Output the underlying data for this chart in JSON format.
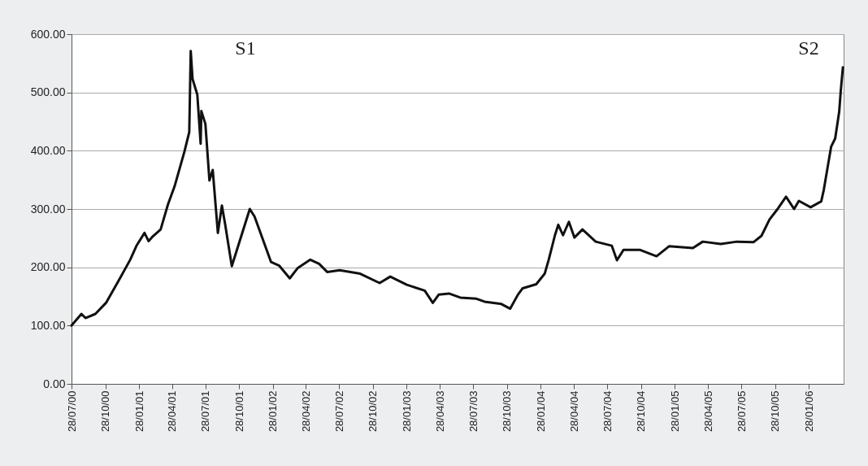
{
  "chart_data": {
    "type": "line",
    "x": [
      "2000-07-28",
      "2000-08-24",
      "2000-09-04",
      "2000-10-01",
      "2000-10-30",
      "2000-12-07",
      "2001-01-04",
      "2001-01-22",
      "2001-02-12",
      "2001-02-23",
      "2001-03-05",
      "2001-03-28",
      "2001-04-17",
      "2001-05-05",
      "2001-06-01",
      "2001-06-14",
      "2001-06-18",
      "2001-06-23",
      "2001-07-06",
      "2001-07-15",
      "2001-07-17",
      "2001-07-28",
      "2001-08-08",
      "2001-08-17",
      "2001-08-31",
      "2001-09-11",
      "2001-09-20",
      "2001-10-08",
      "2001-11-26",
      "2001-12-09",
      "2002-01-23",
      "2002-02-14",
      "2002-03-15",
      "2002-04-06",
      "2002-05-10",
      "2002-06-03",
      "2002-06-25",
      "2002-07-29",
      "2002-09-23",
      "2002-11-15",
      "2002-12-14",
      "2003-01-28",
      "2003-03-18",
      "2003-04-09",
      "2003-04-25",
      "2003-05-23",
      "2003-06-23",
      "2003-08-06",
      "2003-08-28",
      "2003-10-13",
      "2003-11-06",
      "2003-11-27",
      "2003-12-10",
      "2004-01-16",
      "2004-02-08",
      "2004-02-19",
      "2004-03-07",
      "2004-03-16",
      "2004-03-29",
      "2004-04-14",
      "2004-04-29",
      "2004-05-21",
      "2004-06-26",
      "2004-08-09",
      "2004-08-23",
      "2004-09-10",
      "2004-10-24",
      "2004-12-09",
      "2005-01-12",
      "2005-03-18",
      "2005-04-14",
      "2005-06-02",
      "2005-07-16",
      "2005-08-30",
      "2005-09-21",
      "2005-10-13",
      "2005-11-04",
      "2005-11-27",
      "2005-12-19",
      "2006-01-01",
      "2006-02-02",
      "2006-03-03",
      "2006-03-10",
      "2006-03-30",
      "2006-04-10",
      "2006-04-21",
      "2006-04-25",
      "2006-05-01"
    ],
    "series": [
      {
        "color": "#111111",
        "values": [
          100,
          120,
          113,
          120,
          139,
          181,
          213,
          238,
          259,
          245,
          252,
          265,
          308,
          339,
          399,
          432,
          571,
          523,
          496,
          412,
          468,
          446,
          349,
          367,
          259,
          306,
          273,
          202,
          300,
          287,
          209,
          203,
          181,
          199,
          213,
          206,
          192,
          195,
          189,
          173,
          184,
          170,
          160,
          139,
          153,
          155,
          148,
          146,
          141,
          137,
          129,
          153,
          164,
          171,
          189,
          213,
          255,
          273,
          255,
          278,
          251,
          265,
          244,
          237,
          212,
          230,
          230,
          219,
          236,
          233,
          244,
          240,
          244,
          243,
          254,
          282,
          300,
          321,
          300,
          314,
          303,
          313,
          333,
          407,
          421,
          467,
          501,
          543
        ]
      }
    ],
    "xlim": [
      "2000-07-28",
      "2006-05-03"
    ],
    "xticks": [
      {
        "value": "2000-07-28",
        "label": "28/07/00"
      },
      {
        "value": "2000-10-28",
        "label": "28/10/00"
      },
      {
        "value": "2001-01-28",
        "label": "28/01/01"
      },
      {
        "value": "2001-04-28",
        "label": "28/04/01"
      },
      {
        "value": "2001-07-28",
        "label": "28/07/01"
      },
      {
        "value": "2001-10-28",
        "label": "28/10/01"
      },
      {
        "value": "2002-01-28",
        "label": "28/01/02"
      },
      {
        "value": "2002-04-28",
        "label": "28/04/02"
      },
      {
        "value": "2002-07-28",
        "label": "28/07/02"
      },
      {
        "value": "2002-10-28",
        "label": "28/10/02"
      },
      {
        "value": "2003-01-28",
        "label": "28/01/03"
      },
      {
        "value": "2003-04-28",
        "label": "28/04/03"
      },
      {
        "value": "2003-07-28",
        "label": "28/07/03"
      },
      {
        "value": "2003-10-28",
        "label": "28/10/03"
      },
      {
        "value": "2004-01-28",
        "label": "28/01/04"
      },
      {
        "value": "2004-04-28",
        "label": "28/04/04"
      },
      {
        "value": "2004-07-28",
        "label": "28/07/04"
      },
      {
        "value": "2004-10-28",
        "label": "28/10/04"
      },
      {
        "value": "2005-01-28",
        "label": "28/01/05"
      },
      {
        "value": "2005-04-28",
        "label": "28/04/05"
      },
      {
        "value": "2005-07-28",
        "label": "28/07/05"
      },
      {
        "value": "2005-10-28",
        "label": "28/10/05"
      },
      {
        "value": "2006-01-28",
        "label": "28/01/06"
      }
    ],
    "ylim": [
      0,
      600
    ],
    "yticks": [
      {
        "value": 0,
        "label": "0.00"
      },
      {
        "value": 100,
        "label": "100.00"
      },
      {
        "value": 200,
        "label": "200.00"
      },
      {
        "value": 300,
        "label": "300.00"
      },
      {
        "value": 400,
        "label": "400.00"
      },
      {
        "value": 500,
        "label": "500.00"
      },
      {
        "value": 600,
        "label": "600.00"
      }
    ],
    "grid": "y",
    "annotations": [
      "S1",
      "S2"
    ]
  }
}
